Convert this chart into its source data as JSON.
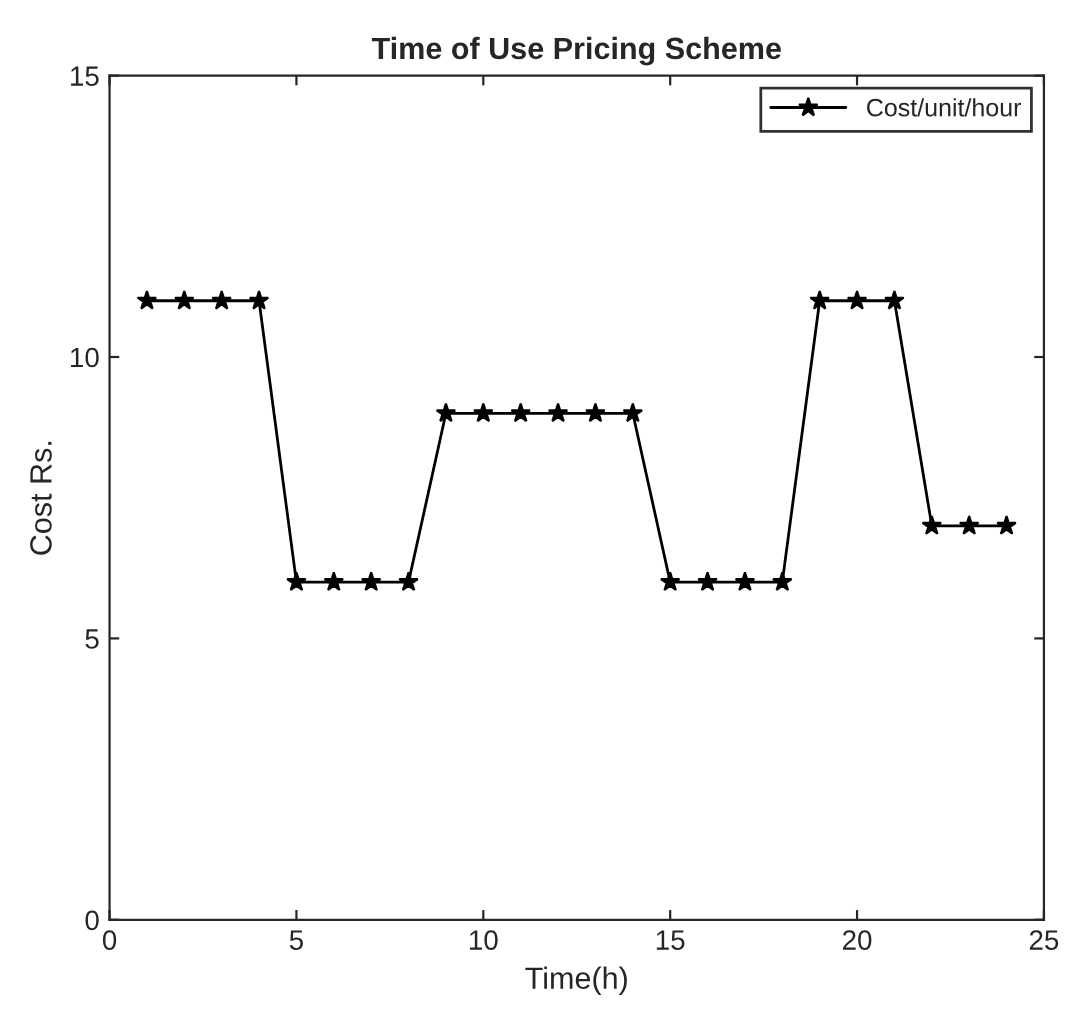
{
  "chart_data": {
    "type": "line",
    "title": "Time of Use Pricing Scheme",
    "xlabel": "Time(h)",
    "ylabel": "Cost Rs.",
    "x": [
      1,
      2,
      3,
      4,
      5,
      6,
      7,
      8,
      9,
      10,
      11,
      12,
      13,
      14,
      15,
      16,
      17,
      18,
      19,
      20,
      21,
      22,
      23,
      24
    ],
    "series": [
      {
        "name": "Cost/unit/hour",
        "color": "#000000",
        "values": [
          11,
          11,
          11,
          11,
          6,
          6,
          6,
          6,
          9,
          9,
          9,
          9,
          9,
          9,
          6,
          6,
          6,
          6,
          11,
          11,
          11,
          7,
          7,
          7
        ]
      }
    ],
    "xlim": [
      0,
      25
    ],
    "xticks": [
      0,
      5,
      10,
      15,
      20,
      25
    ],
    "ylim": [
      0,
      15
    ],
    "yticks": [
      0,
      5,
      10,
      15
    ],
    "grid": false,
    "legend": "top right",
    "marker": "star",
    "line_style": "solid"
  }
}
